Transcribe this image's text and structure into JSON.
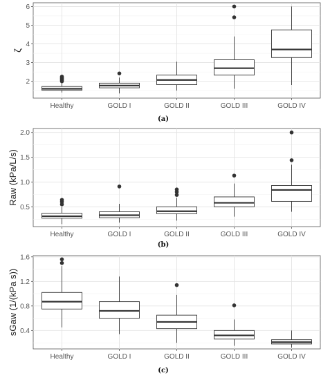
{
  "chart_data": [
    {
      "type": "box",
      "caption": "(a)",
      "ylabel": "ζ",
      "ylim": [
        1.1,
        6.2
      ],
      "yticks": [
        2,
        3,
        4,
        5,
        6
      ],
      "ytick_labels": [
        "2",
        "3",
        "4",
        "5",
        "6"
      ],
      "categories": [
        "Healthy",
        "GOLD I",
        "GOLD II",
        "GOLD III",
        "GOLD IV"
      ],
      "boxes": [
        {
          "whisker_low": 1.4,
          "q1": 1.52,
          "median": 1.6,
          "q3": 1.72,
          "whisker_high": 1.9,
          "outliers": [
            2.0,
            2.05,
            2.1,
            2.15,
            2.2,
            2.25
          ]
        },
        {
          "whisker_low": 1.35,
          "q1": 1.65,
          "median": 1.77,
          "q3": 1.9,
          "whisker_high": 2.2,
          "outliers": [
            2.42
          ]
        },
        {
          "whisker_low": 1.5,
          "q1": 1.82,
          "median": 2.07,
          "q3": 2.33,
          "whisker_high": 3.05,
          "outliers": []
        },
        {
          "whisker_low": 1.6,
          "q1": 2.33,
          "median": 2.7,
          "q3": 3.15,
          "whisker_high": 4.4,
          "outliers": [
            5.42,
            6.0
          ]
        },
        {
          "whisker_low": 1.8,
          "q1": 3.27,
          "median": 3.7,
          "q3": 4.75,
          "whisker_high": 6.0,
          "outliers": []
        }
      ]
    },
    {
      "type": "box",
      "caption": "(b)",
      "ylabel": "Raw (kPa/L/s)",
      "ylim": [
        0.1,
        2.08
      ],
      "yticks": [
        0.5,
        1.0,
        1.5,
        2.0
      ],
      "ytick_labels": [
        "0.5",
        "1.0",
        "1.5",
        "2.0"
      ],
      "categories": [
        "Healthy",
        "GOLD I",
        "GOLD II",
        "GOLD III",
        "GOLD IV"
      ],
      "boxes": [
        {
          "whisker_low": 0.15,
          "q1": 0.27,
          "median": 0.31,
          "q3": 0.37,
          "whisker_high": 0.5,
          "outliers": [
            0.55,
            0.6,
            0.64
          ]
        },
        {
          "whisker_low": 0.18,
          "q1": 0.28,
          "median": 0.33,
          "q3": 0.4,
          "whisker_high": 0.56,
          "outliers": [
            0.91
          ]
        },
        {
          "whisker_low": 0.22,
          "q1": 0.36,
          "median": 0.41,
          "q3": 0.5,
          "whisker_high": 0.68,
          "outliers": [
            0.74,
            0.8,
            0.85
          ]
        },
        {
          "whisker_low": 0.3,
          "q1": 0.5,
          "median": 0.58,
          "q3": 0.7,
          "whisker_high": 0.97,
          "outliers": [
            1.13
          ]
        },
        {
          "whisker_low": 0.4,
          "q1": 0.61,
          "median": 0.84,
          "q3": 0.93,
          "whisker_high": 1.35,
          "outliers": [
            1.44,
            2.0
          ]
        }
      ]
    },
    {
      "type": "box",
      "caption": "(c)",
      "ylabel": "sGaw (1/(kPa s))",
      "ylim": [
        0.1,
        1.62
      ],
      "yticks": [
        0.4,
        0.8,
        1.2,
        1.6
      ],
      "ytick_labels": [
        "0.4",
        "0.8",
        "1.2",
        "1.6"
      ],
      "categories": [
        "Healthy",
        "GOLD I",
        "GOLD II",
        "GOLD III",
        "GOLD IV"
      ],
      "boxes": [
        {
          "whisker_low": 0.45,
          "q1": 0.75,
          "median": 0.87,
          "q3": 1.02,
          "whisker_high": 1.45,
          "outliers": [
            1.5,
            1.56
          ]
        },
        {
          "whisker_low": 0.34,
          "q1": 0.6,
          "median": 0.72,
          "q3": 0.87,
          "whisker_high": 1.28,
          "outliers": []
        },
        {
          "whisker_low": 0.2,
          "q1": 0.43,
          "median": 0.54,
          "q3": 0.65,
          "whisker_high": 0.98,
          "outliers": [
            1.14
          ]
        },
        {
          "whisker_low": 0.15,
          "q1": 0.26,
          "median": 0.32,
          "q3": 0.4,
          "whisker_high": 0.58,
          "outliers": [
            0.81
          ]
        },
        {
          "whisker_low": 0.12,
          "q1": 0.18,
          "median": 0.21,
          "q3": 0.25,
          "whisker_high": 0.4,
          "outliers": []
        }
      ]
    }
  ]
}
